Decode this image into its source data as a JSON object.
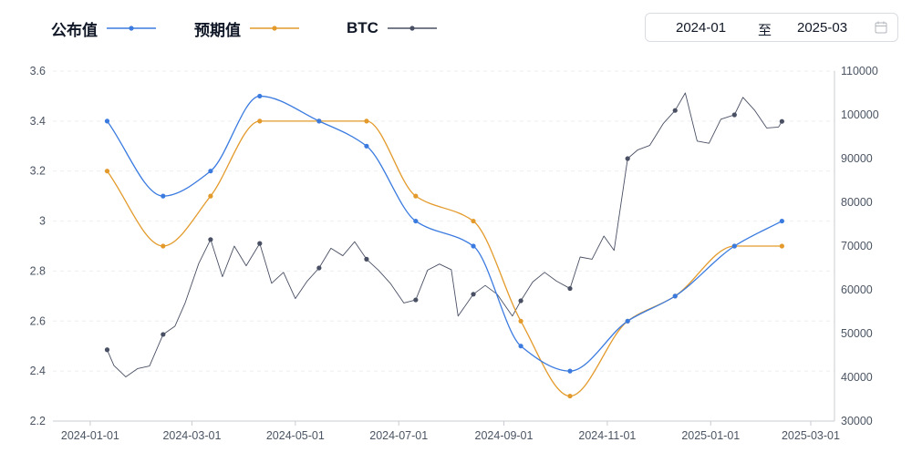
{
  "legend": [
    {
      "label": "公布值",
      "color": "#3b7be0"
    },
    {
      "label": "预期值",
      "color": "#e39a2b"
    },
    {
      "label": "BTC",
      "color": "#4a5064"
    }
  ],
  "date_range": {
    "start": "2024-01",
    "separator": "至",
    "end": "2025-03",
    "icon": "calendar-icon"
  },
  "chart_data": {
    "type": "line",
    "title": "",
    "xlabel": "",
    "ylabel": "",
    "grid": true,
    "legend_position": "top-left",
    "x_range": [
      "2023-12-10",
      "2025-03-15"
    ],
    "x_ticks": [
      "2024-01-01",
      "2024-03-01",
      "2024-05-01",
      "2024-07-01",
      "2024-09-01",
      "2024-11-01",
      "2025-01-01",
      "2025-03-01"
    ],
    "y_left": {
      "range": [
        2.2,
        3.6
      ],
      "ticks": [
        "2.2",
        "2.4",
        "2.6",
        "2.8",
        "3",
        "3.2",
        "3.4",
        "3.6"
      ]
    },
    "y_right": {
      "range": [
        30000,
        110000
      ],
      "ticks": [
        "30000",
        "40000",
        "50000",
        "60000",
        "70000",
        "80000",
        "90000",
        "100000",
        "110000"
      ]
    },
    "series": [
      {
        "name": "公布值",
        "axis": "left",
        "color": "#3b7be0",
        "smooth": true,
        "x": [
          "2024-01-11",
          "2024-02-13",
          "2024-03-12",
          "2024-04-10",
          "2024-05-15",
          "2024-06-12",
          "2024-07-11",
          "2024-08-14",
          "2024-09-11",
          "2024-10-10",
          "2024-11-13",
          "2024-12-11",
          "2025-01-15",
          "2025-02-12"
        ],
        "values": [
          3.4,
          3.1,
          3.2,
          3.5,
          3.4,
          3.3,
          3.0,
          2.9,
          2.5,
          2.4,
          2.6,
          2.7,
          2.9,
          3.0
        ]
      },
      {
        "name": "预期值",
        "axis": "left",
        "color": "#e39a2b",
        "smooth": true,
        "x": [
          "2024-01-11",
          "2024-02-13",
          "2024-03-12",
          "2024-04-10",
          "2024-05-15",
          "2024-06-12",
          "2024-07-11",
          "2024-08-14",
          "2024-09-11",
          "2024-10-10",
          "2024-11-13",
          "2024-12-11",
          "2025-01-15",
          "2025-02-12"
        ],
        "values": [
          3.2,
          2.9,
          3.1,
          3.4,
          3.4,
          3.4,
          3.1,
          3.0,
          2.6,
          2.3,
          2.6,
          2.7,
          2.9,
          2.9
        ]
      },
      {
        "name": "BTC",
        "axis": "right",
        "color": "#4a5064",
        "smooth": false,
        "x": [
          "2024-01-11",
          "2024-01-15",
          "2024-01-22",
          "2024-01-29",
          "2024-02-05",
          "2024-02-13",
          "2024-02-20",
          "2024-02-26",
          "2024-03-05",
          "2024-03-12",
          "2024-03-19",
          "2024-03-26",
          "2024-04-02",
          "2024-04-10",
          "2024-04-17",
          "2024-04-24",
          "2024-05-01",
          "2024-05-08",
          "2024-05-15",
          "2024-05-22",
          "2024-05-29",
          "2024-06-05",
          "2024-06-12",
          "2024-06-19",
          "2024-06-26",
          "2024-07-04",
          "2024-07-11",
          "2024-07-18",
          "2024-07-25",
          "2024-08-01",
          "2024-08-05",
          "2024-08-14",
          "2024-08-21",
          "2024-08-28",
          "2024-09-06",
          "2024-09-11",
          "2024-09-18",
          "2024-09-25",
          "2024-10-02",
          "2024-10-10",
          "2024-10-16",
          "2024-10-23",
          "2024-10-30",
          "2024-11-05",
          "2024-11-13",
          "2024-11-19",
          "2024-11-26",
          "2024-12-04",
          "2024-12-11",
          "2024-12-17",
          "2024-12-24",
          "2024-12-31",
          "2025-01-07",
          "2025-01-15",
          "2025-01-20",
          "2025-01-27",
          "2025-02-03",
          "2025-02-10",
          "2025-02-12"
        ],
        "values": [
          46300,
          42700,
          40100,
          42000,
          42600,
          49800,
          51700,
          57000,
          66000,
          71500,
          63000,
          70000,
          65500,
          70600,
          61500,
          64000,
          58000,
          62000,
          65000,
          69500,
          67800,
          71000,
          67000,
          64500,
          61500,
          57000,
          57700,
          64500,
          65900,
          64600,
          54000,
          59000,
          61000,
          59000,
          54000,
          57500,
          61800,
          64000,
          62000,
          60300,
          67500,
          67000,
          72300,
          69000,
          90000,
          92000,
          93000,
          98000,
          101000,
          105000,
          94000,
          93500,
          99000,
          100000,
          104000,
          101000,
          97000,
          97200,
          98500
        ]
      }
    ]
  }
}
